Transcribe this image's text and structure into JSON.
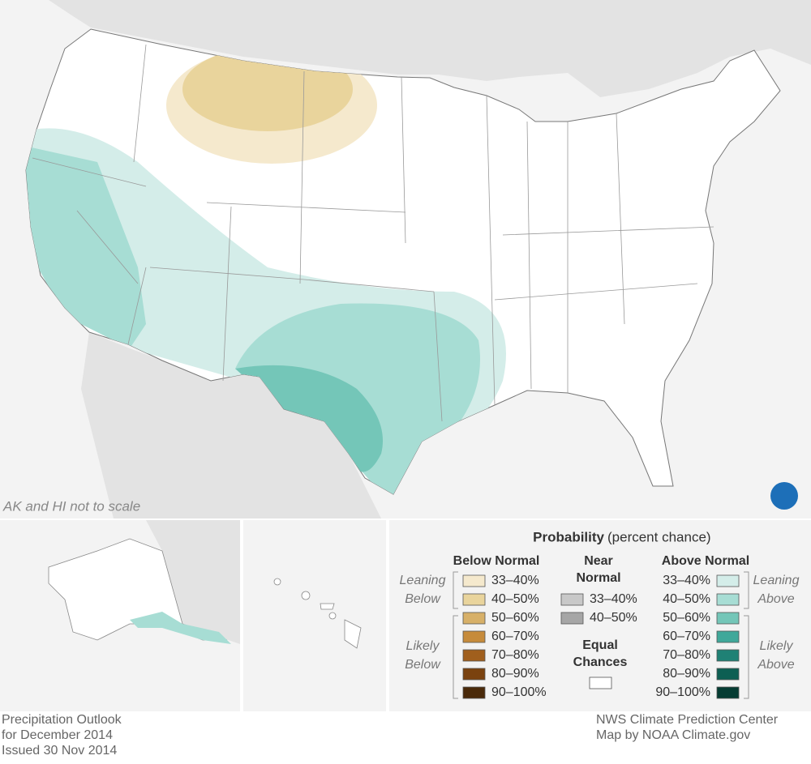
{
  "map": {
    "note": "AK and HI not to scale"
  },
  "legend": {
    "title": "Probability",
    "subtitle": "(percent chance)",
    "below": {
      "heading": "Below Normal",
      "leaning": [
        "Leaning",
        "Below"
      ],
      "likely": [
        "Likely",
        "Below"
      ],
      "items": [
        {
          "label": "33–40%",
          "color": "#f5e9cd"
        },
        {
          "label": "40–50%",
          "color": "#e9d49c"
        },
        {
          "label": "50–60%",
          "color": "#d7b068"
        },
        {
          "label": "60–70%",
          "color": "#c68b3b"
        },
        {
          "label": "70–80%",
          "color": "#a05f1d"
        },
        {
          "label": "80–90%",
          "color": "#7a420f"
        },
        {
          "label": "90–100%",
          "color": "#4a2a0a"
        }
      ]
    },
    "near": {
      "heading": [
        "Near",
        "Normal"
      ],
      "items": [
        {
          "label": "33–40%",
          "color": "#c8c8c8"
        },
        {
          "label": "40–50%",
          "color": "#a6a6a6"
        }
      ]
    },
    "equal": {
      "heading": [
        "Equal",
        "Chances"
      ],
      "color": "#ffffff"
    },
    "above": {
      "heading": "Above Normal",
      "leaning": [
        "Leaning",
        "Above"
      ],
      "likely": [
        "Likely",
        "Above"
      ],
      "items": [
        {
          "label": "33–40%",
          "color": "#d4ede9"
        },
        {
          "label": "40–50%",
          "color": "#a7ddd4"
        },
        {
          "label": "50–60%",
          "color": "#74c6b8"
        },
        {
          "label": "60–70%",
          "color": "#40a89a"
        },
        {
          "label": "70–80%",
          "color": "#1f8175"
        },
        {
          "label": "80–90%",
          "color": "#0d5f53"
        },
        {
          "label": "90–100%",
          "color": "#053c33"
        }
      ]
    }
  },
  "footer": {
    "left": [
      "Precipitation Outlook",
      "for December 2014",
      "Issued 30 Nov 2014"
    ],
    "right": [
      "NWS Climate Prediction Center",
      "Map by NOAA Climate.gov"
    ]
  }
}
